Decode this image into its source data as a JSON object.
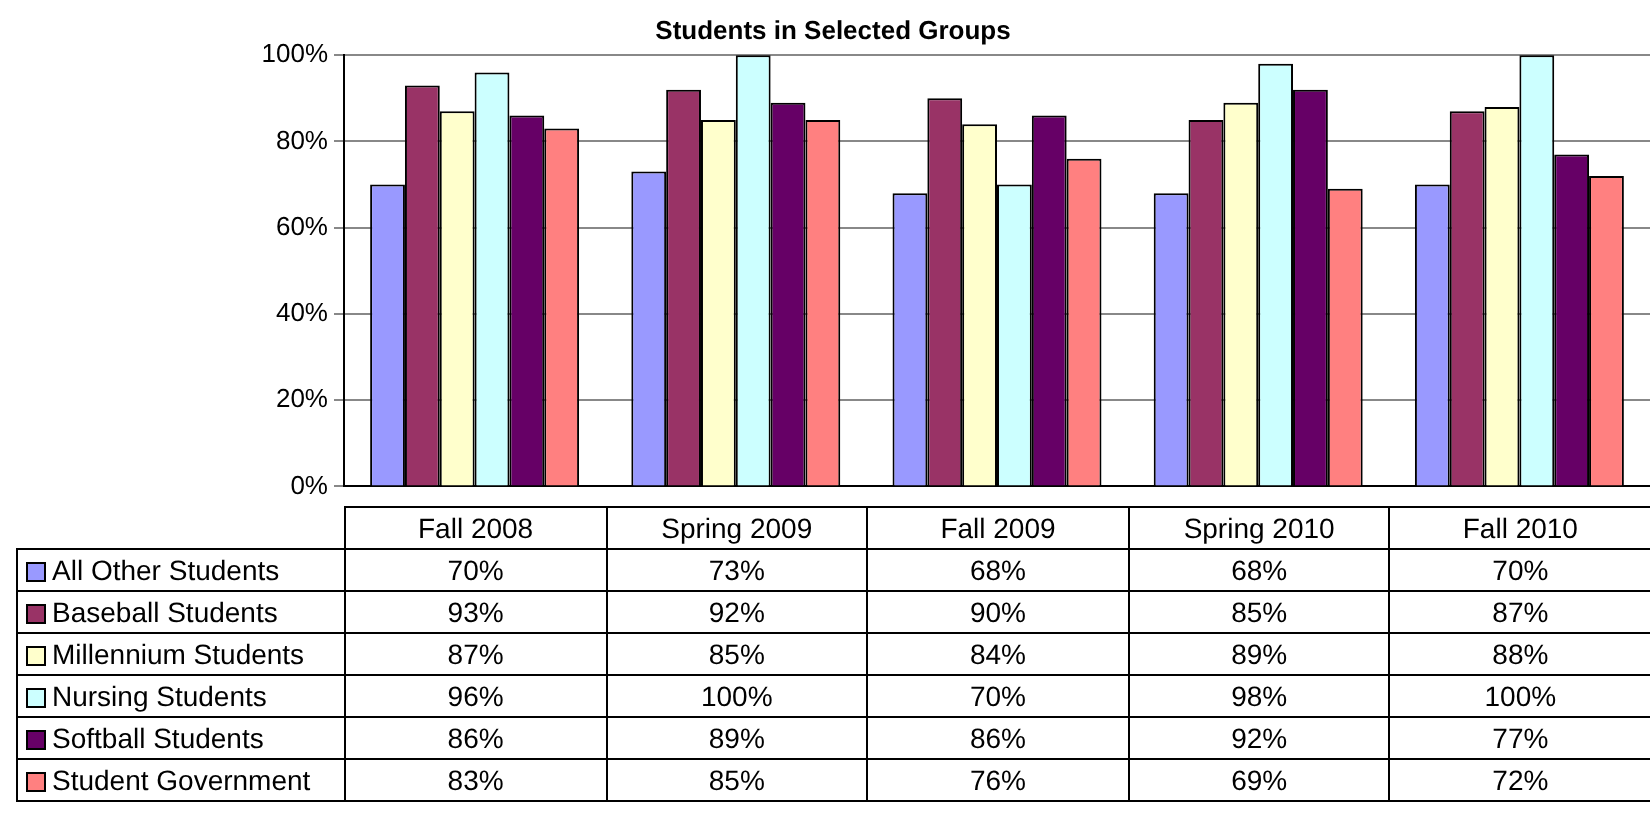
{
  "chart_data": {
    "type": "bar",
    "title": "Students in Selected Groups",
    "categories": [
      "Fall 2008",
      "Spring 2009",
      "Fall 2009",
      "Spring 2010",
      "Fall 2010"
    ],
    "series": [
      {
        "name": "All Other Students",
        "color": "#9999ff",
        "values": [
          70,
          73,
          68,
          68,
          70
        ],
        "value_labels": [
          "70%",
          "73%",
          "68%",
          "68%",
          "70%"
        ]
      },
      {
        "name": "Baseball Students",
        "color": "#993366",
        "values": [
          93,
          92,
          90,
          85,
          87
        ],
        "value_labels": [
          "93%",
          "92%",
          "90%",
          "85%",
          "87%"
        ]
      },
      {
        "name": "Millennium Students",
        "color": "#ffffcc",
        "values": [
          87,
          85,
          84,
          89,
          88
        ],
        "value_labels": [
          "87%",
          "85%",
          "84%",
          "89%",
          "88%"
        ]
      },
      {
        "name": "Nursing Students",
        "color": "#ccffff",
        "values": [
          96,
          100,
          70,
          98,
          100
        ],
        "value_labels": [
          "96%",
          "100%",
          "70%",
          "98%",
          "100%"
        ]
      },
      {
        "name": "Softball Students",
        "color": "#660066",
        "values": [
          86,
          89,
          86,
          92,
          77
        ],
        "value_labels": [
          "86%",
          "89%",
          "86%",
          "92%",
          "77%"
        ]
      },
      {
        "name": "Student Government",
        "color": "#ff8080",
        "values": [
          83,
          85,
          76,
          69,
          72
        ],
        "value_labels": [
          "83%",
          "85%",
          "76%",
          "69%",
          "72%"
        ]
      }
    ],
    "ylim": [
      0,
      100
    ],
    "yticks": [
      {
        "value": 0,
        "label": "0%"
      },
      {
        "value": 20,
        "label": "20%"
      },
      {
        "value": 40,
        "label": "40%"
      },
      {
        "value": 60,
        "label": "60%"
      },
      {
        "value": 80,
        "label": "80%"
      },
      {
        "value": 100,
        "label": "100%"
      }
    ],
    "grid": "y",
    "legend": "bottom"
  }
}
